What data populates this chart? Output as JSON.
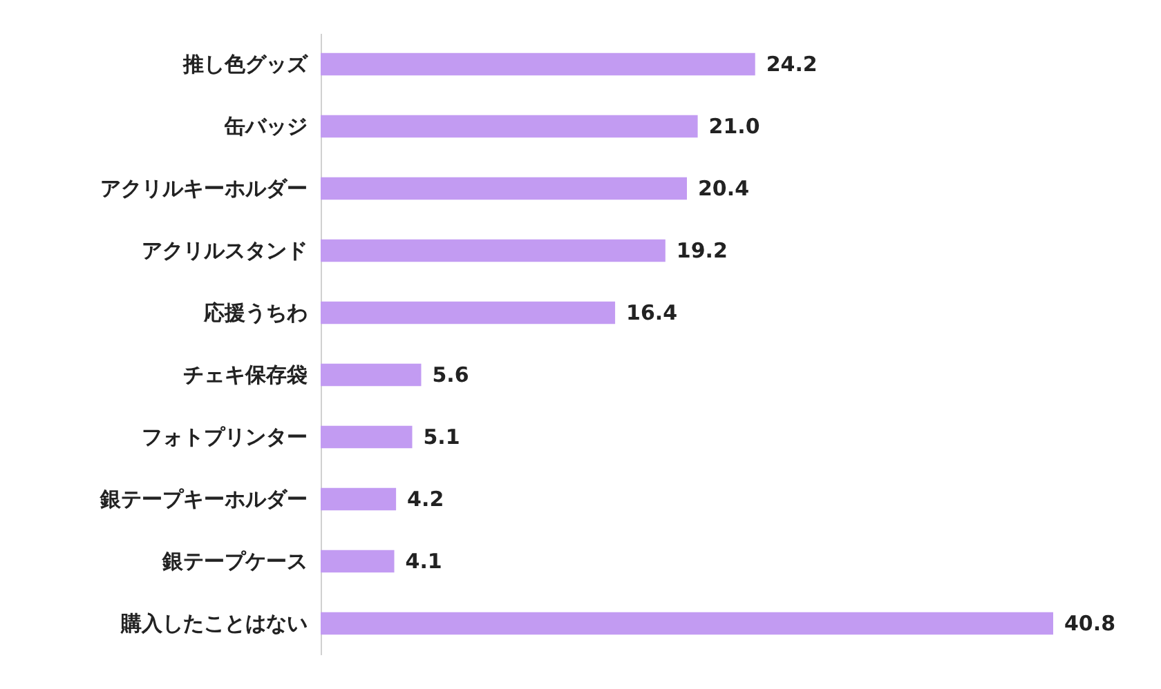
{
  "chart_data": {
    "type": "bar",
    "orientation": "horizontal",
    "categories": [
      "推し色グッズ",
      "缶バッジ",
      "アクリルキーホルダー",
      "アクリルスタンド",
      "応援うちわ",
      "チェキ保存袋",
      "フォトプリンター",
      "銀テープキーホルダー",
      "銀テープケース",
      "購入したことはない"
    ],
    "values": [
      24.2,
      21.0,
      20.4,
      19.2,
      16.4,
      5.6,
      5.1,
      4.2,
      4.1,
      40.8
    ],
    "value_labels": [
      "24.2",
      "21.0",
      "20.4",
      "19.2",
      "16.4",
      "5.6",
      "5.1",
      "4.2",
      "4.1",
      "40.8"
    ],
    "color": "#c29bf2",
    "grid": false
  }
}
